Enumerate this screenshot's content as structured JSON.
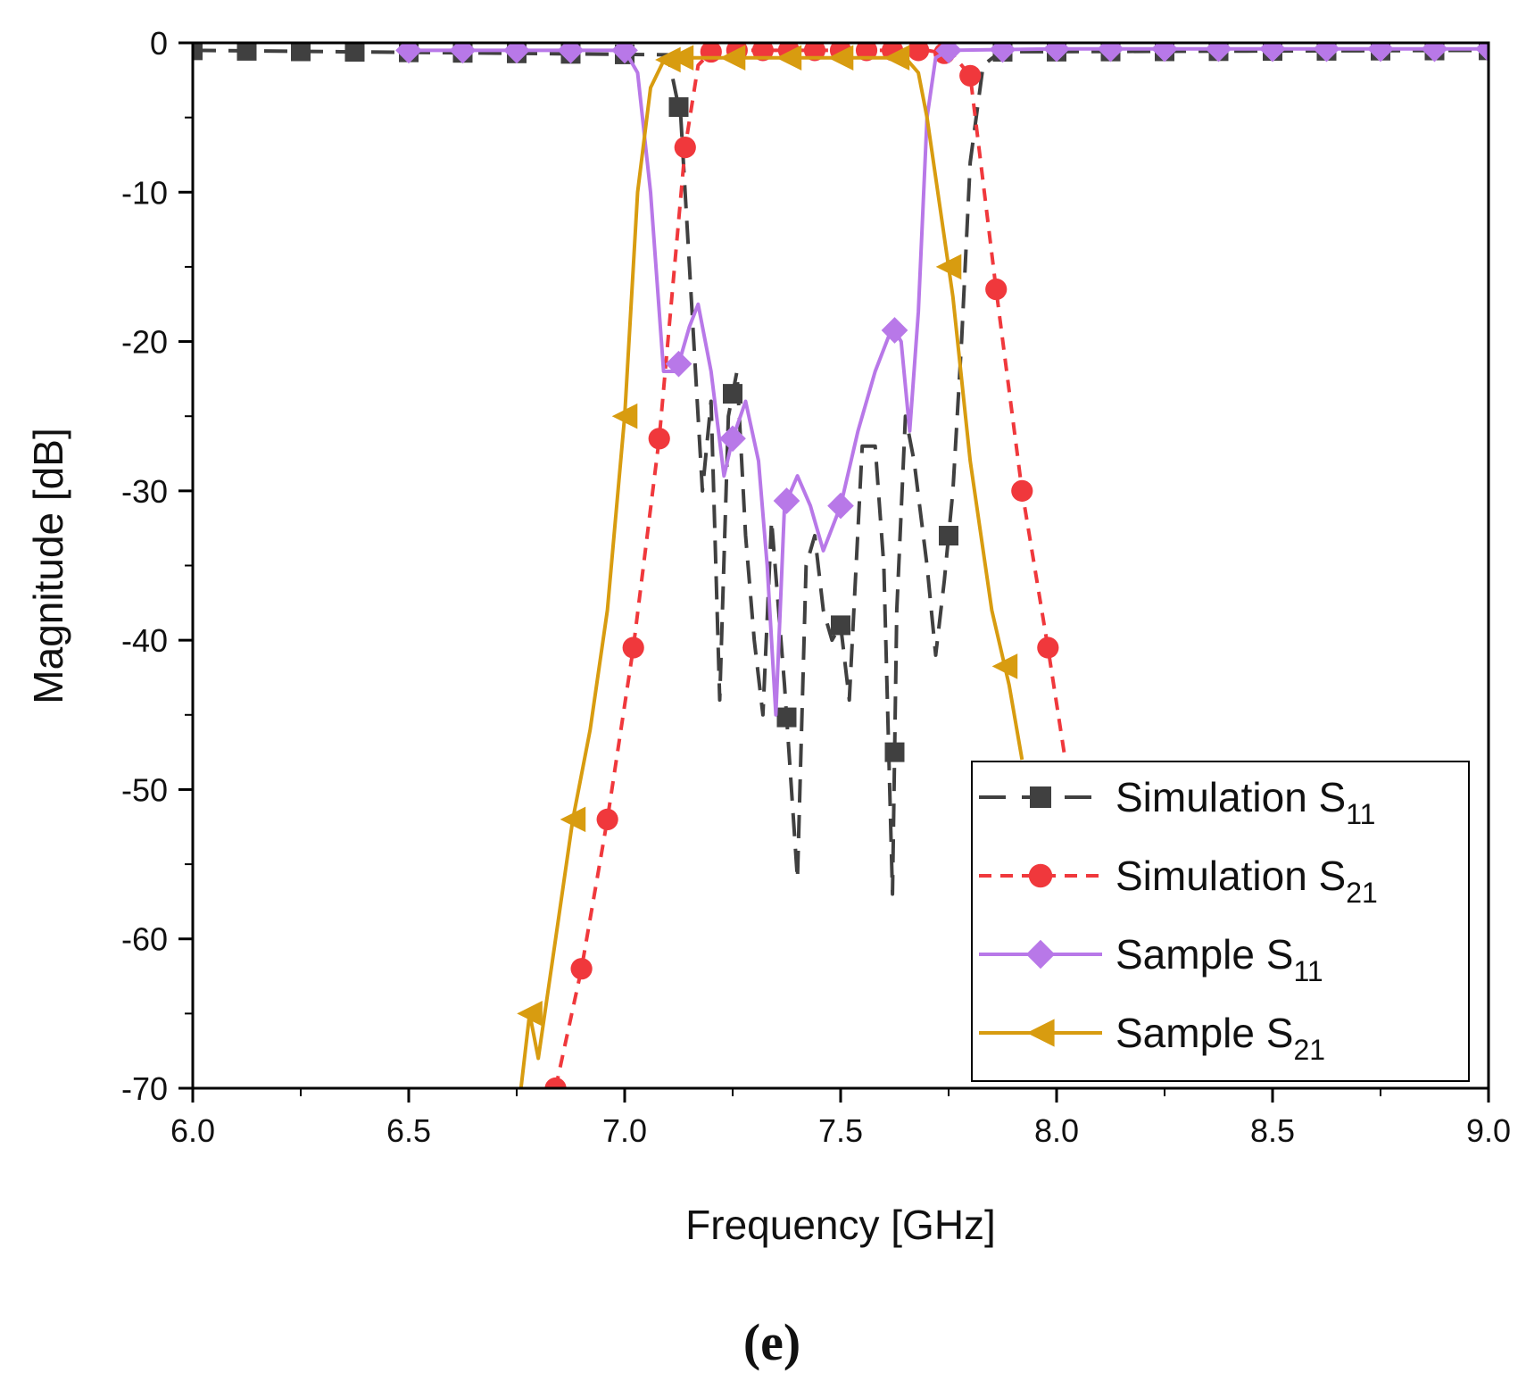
{
  "chart_data": {
    "type": "line",
    "title": "",
    "xlabel": "Frequency [GHz]",
    "ylabel": "Magnitude [dB]",
    "xlim": [
      6.0,
      9.0
    ],
    "ylim": [
      -70,
      0
    ],
    "xticks": [
      6.0,
      6.5,
      7.0,
      7.5,
      8.0,
      8.5,
      9.0
    ],
    "xtick_labels": [
      "6.0",
      "6.5",
      "7.0",
      "7.5",
      "8.0",
      "8.5",
      "9.0"
    ],
    "yticks": [
      0,
      -10,
      -20,
      -30,
      -40,
      -50,
      -60,
      -70
    ],
    "ytick_labels": [
      "0",
      "-10",
      "-20",
      "-30",
      "-40",
      "-50",
      "-60",
      "-70"
    ],
    "grid": false,
    "legend_position": "bottom-right",
    "panel_label": "(e)",
    "series": [
      {
        "name": "Simulation S11",
        "label_main": "Simulation S",
        "label_sub": "11",
        "color": "#404040",
        "dash": "dashed",
        "marker": "square",
        "x": [
          6.0,
          7.1,
          7.13,
          7.15,
          7.18,
          7.2,
          7.22,
          7.24,
          7.26,
          7.28,
          7.3,
          7.32,
          7.34,
          7.37,
          7.4,
          7.42,
          7.44,
          7.46,
          7.48,
          7.5,
          7.52,
          7.55,
          7.58,
          7.6,
          7.62,
          7.63,
          7.65,
          7.67,
          7.7,
          7.72,
          7.74,
          7.76,
          7.78,
          7.8,
          7.83,
          7.87,
          9.0
        ],
        "y": [
          -0.5,
          -0.8,
          -5,
          -15,
          -30,
          -24,
          -44,
          -25,
          -22,
          -33,
          -40,
          -45,
          -32,
          -43,
          -56,
          -35,
          -33,
          -38,
          -40,
          -39,
          -44,
          -27,
          -27,
          -35,
          -57,
          -38,
          -25,
          -28,
          -35,
          -41,
          -36,
          -30,
          -20,
          -8,
          -1.5,
          -0.6,
          -0.5
        ],
        "marker_x": [
          6.0,
          6.125,
          6.25,
          6.375,
          6.5,
          6.625,
          6.75,
          6.875,
          7.0,
          7.125,
          7.25,
          7.375,
          7.5,
          7.625,
          7.75,
          7.875,
          8.0,
          8.125,
          8.25,
          8.375,
          8.5,
          8.625,
          8.75,
          8.875,
          9.0
        ]
      },
      {
        "name": "Simulation S21",
        "label_main": "Simulation S",
        "label_sub": "21",
        "color": "#f0383c",
        "dash": "dashed",
        "marker": "circle",
        "x": [
          6.84,
          6.9,
          6.96,
          7.02,
          7.08,
          7.14,
          7.17,
          7.2,
          7.25,
          7.3,
          7.4,
          7.5,
          7.6,
          7.7,
          7.76,
          7.8,
          7.86,
          7.92,
          7.98,
          8.02
        ],
        "y": [
          -70,
          -62,
          -52,
          -40.5,
          -26.5,
          -7,
          -1.5,
          -0.6,
          -0.5,
          -0.5,
          -0.5,
          -0.5,
          -0.5,
          -0.5,
          -0.8,
          -2.2,
          -16.5,
          -30,
          -40.5,
          -48
        ],
        "marker_x": [
          6.84,
          6.9,
          6.96,
          7.02,
          7.08,
          7.14,
          7.2,
          7.26,
          7.32,
          7.38,
          7.44,
          7.5,
          7.56,
          7.62,
          7.68,
          7.74,
          7.8,
          7.86,
          7.92,
          7.98
        ]
      },
      {
        "name": "Sample S11",
        "label_main": "Sample S",
        "label_sub": "11",
        "color": "#b878e8",
        "dash": "solid",
        "marker": "diamond",
        "x": [
          6.5,
          6.8,
          7.0,
          7.03,
          7.06,
          7.09,
          7.12,
          7.15,
          7.17,
          7.2,
          7.23,
          7.25,
          7.28,
          7.31,
          7.33,
          7.35,
          7.37,
          7.4,
          7.43,
          7.46,
          7.5,
          7.54,
          7.58,
          7.62,
          7.64,
          7.66,
          7.68,
          7.7,
          7.72,
          7.75,
          8.0,
          9.0
        ],
        "y": [
          -0.5,
          -0.5,
          -0.5,
          -2,
          -10,
          -22,
          -22,
          -19,
          -17.5,
          -22,
          -29,
          -26.5,
          -24,
          -28,
          -35,
          -45,
          -31,
          -29,
          -31,
          -34,
          -31,
          -26,
          -22,
          -19,
          -20,
          -26,
          -18,
          -5,
          -1,
          -0.5,
          -0.4,
          -0.4
        ],
        "marker_x": [
          6.5,
          6.625,
          6.75,
          6.875,
          7.0,
          7.125,
          7.25,
          7.375,
          7.5,
          7.625,
          7.75,
          7.875,
          8.0,
          8.125,
          8.25,
          8.375,
          8.5,
          8.625,
          8.75,
          8.875,
          9.0
        ]
      },
      {
        "name": "Sample S21",
        "label_main": "Sample S",
        "label_sub": "21",
        "color": "#d89c10",
        "dash": "solid",
        "marker": "triangle-left",
        "x": [
          6.76,
          6.78,
          6.8,
          6.84,
          6.88,
          6.92,
          6.96,
          7.0,
          7.03,
          7.06,
          7.09,
          7.12,
          7.2,
          7.3,
          7.4,
          7.5,
          7.6,
          7.65,
          7.68,
          7.7,
          7.73,
          7.76,
          7.8,
          7.85,
          7.89,
          7.92
        ],
        "y": [
          -70,
          -65,
          -68,
          -60,
          -52,
          -46,
          -38,
          -25,
          -10,
          -3,
          -1.2,
          -1,
          -1,
          -1,
          -1,
          -1,
          -1,
          -1,
          -2,
          -5,
          -11,
          -17,
          -28,
          -38,
          -43,
          -48
        ],
        "marker_x": [
          6.78,
          6.88,
          7.0,
          7.1,
          7.13,
          7.25,
          7.38,
          7.5,
          7.63,
          7.75,
          7.88
        ]
      }
    ]
  }
}
